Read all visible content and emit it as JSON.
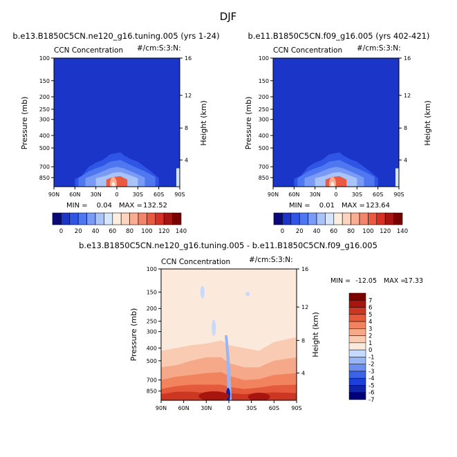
{
  "figure_title": "DJF",
  "colors": {
    "abs_scale": [
      "#0a0a7a",
      "#1a35c8",
      "#2f55e6",
      "#4f77f0",
      "#7a9bf5",
      "#a9c3fb",
      "#d6e6ff",
      "#fdeee0",
      "#fcd3be",
      "#f9ad92",
      "#f5856a",
      "#ea5a43",
      "#d53225",
      "#a8140f",
      "#7a0000"
    ],
    "diff_scale": [
      "#000078",
      "#0e23a8",
      "#1c3fd9",
      "#3a63e8",
      "#6a8ff0",
      "#98b5f6",
      "#c6daff",
      "#fbeadb",
      "#f9cbb3",
      "#f6a989",
      "#f1845f",
      "#e45a3b",
      "#cd3622",
      "#a8150e",
      "#7d0000"
    ]
  },
  "chart_data": [
    {
      "type": "heatmap",
      "title": "b.e13.B1850C5CN.ne120_g16.tuning.005 (yrs 1-24)",
      "left_label": "CCN Concentration",
      "right_label": "#/cm:S:3:N:",
      "ylabel": "Pressure (mb)",
      "ylabel2": "Height (km)",
      "x_ticks": [
        "90N",
        "60N",
        "30N",
        "0",
        "30S",
        "60S",
        "90S"
      ],
      "y_ticks": [
        "100",
        "150",
        "200",
        "250",
        "300",
        "400",
        "500",
        "700",
        "850"
      ],
      "y2_ticks": [
        "16",
        "12",
        "8",
        "4"
      ],
      "stats": {
        "min_label": "MIN =",
        "min": "0.04",
        "max_label": "MAX =",
        "max": "132.52"
      },
      "colorbar_labels": [
        "0",
        "20",
        "40",
        "60",
        "80",
        "100",
        "120",
        "140"
      ],
      "contours": [
        {
          "level": 5,
          "x": [
            "60N",
            "50N",
            "40N",
            "30N",
            "20N",
            "10N",
            "5S",
            "10S",
            "20S",
            "30S",
            "40S",
            "50S",
            "60S"
          ],
          "top_mb": [
            870,
            820,
            700,
            650,
            620,
            560,
            540,
            570,
            610,
            640,
            700,
            770,
            860
          ]
        },
        {
          "level": 4,
          "x": [
            "55N",
            "40N",
            "30N",
            "20N",
            "10N",
            "5S",
            "15S",
            "25S",
            "40S",
            "55S"
          ],
          "top_mb": [
            860,
            760,
            720,
            690,
            640,
            620,
            660,
            700,
            760,
            840
          ]
        },
        {
          "level": 3,
          "x": [
            "45N",
            "30N",
            "20N",
            "10N",
            "0",
            "10S",
            "25S",
            "40S"
          ],
          "top_mb": [
            860,
            800,
            760,
            720,
            700,
            720,
            780,
            850
          ]
        },
        {
          "level": 2,
          "x": [
            "30N",
            "15N",
            "5N",
            "5S",
            "15S",
            "30S"
          ],
          "top_mb": [
            860,
            820,
            780,
            770,
            800,
            860
          ]
        },
        {
          "level": 1,
          "x": [
            "15N",
            "5N",
            "5S",
            "15S"
          ],
          "top_mb": [
            880,
            840,
            830,
            880
          ]
        }
      ]
    },
    {
      "type": "heatmap",
      "title": "b.e11.B1850C5CN.f09_g16.005 (yrs 402-421)",
      "left_label": "CCN Concentration",
      "right_label": "#/cm:S:3:N:",
      "ylabel": "Pressure (mb)",
      "ylabel2": "Height (km)",
      "x_ticks": [
        "90N",
        "60N",
        "30N",
        "0",
        "30S",
        "60S",
        "90S"
      ],
      "y_ticks": [
        "100",
        "150",
        "200",
        "250",
        "300",
        "400",
        "500",
        "700",
        "850"
      ],
      "y2_ticks": [
        "16",
        "12",
        "8",
        "4"
      ],
      "stats": {
        "min_label": "MIN =",
        "min": "0.01",
        "max_label": "MAX =",
        "max": "123.64"
      },
      "colorbar_labels": [
        "0",
        "20",
        "40",
        "60",
        "80",
        "100",
        "120",
        "140"
      ],
      "contours": [
        {
          "level": 5,
          "x": [
            "60N",
            "50N",
            "40N",
            "30N",
            "20N",
            "10N",
            "5S",
            "10S",
            "20S",
            "30S",
            "40S",
            "50S",
            "60S"
          ],
          "top_mb": [
            870,
            820,
            700,
            650,
            620,
            560,
            540,
            570,
            610,
            640,
            700,
            770,
            860
          ]
        },
        {
          "level": 4,
          "x": [
            "55N",
            "40N",
            "30N",
            "20N",
            "10N",
            "5S",
            "15S",
            "25S",
            "40S",
            "55S"
          ],
          "top_mb": [
            860,
            760,
            720,
            690,
            640,
            620,
            660,
            700,
            760,
            840
          ]
        },
        {
          "level": 3,
          "x": [
            "45N",
            "30N",
            "20N",
            "10N",
            "0",
            "10S",
            "25S",
            "40S"
          ],
          "top_mb": [
            860,
            800,
            760,
            720,
            700,
            720,
            780,
            850
          ]
        },
        {
          "level": 2,
          "x": [
            "30N",
            "15N",
            "5N",
            "5S",
            "15S",
            "30S"
          ],
          "top_mb": [
            860,
            820,
            780,
            770,
            800,
            860
          ]
        },
        {
          "level": 1,
          "x": [
            "15N",
            "5N",
            "5S",
            "15S"
          ],
          "top_mb": [
            880,
            840,
            830,
            880
          ]
        }
      ]
    },
    {
      "type": "heatmap",
      "title": "b.e13.B1850C5CN.ne120_g16.tuning.005 - b.e11.B1850C5CN.f09_g16.005",
      "left_label": "CCN Concentration",
      "right_label": "#/cm:S:3:N:",
      "ylabel": "Pressure (mb)",
      "ylabel2": "Height (km)",
      "x_ticks": [
        "90N",
        "60N",
        "30N",
        "0",
        "30S",
        "60S",
        "90S"
      ],
      "y_ticks": [
        "100",
        "150",
        "200",
        "250",
        "300",
        "400",
        "500",
        "700",
        "850"
      ],
      "y2_ticks": [
        "16",
        "12",
        "8",
        "4"
      ],
      "stats": {
        "min_label": "MIN =",
        "min": "-12.05",
        "max_label": "MAX =",
        "max": "17.33"
      },
      "colorbar_labels": [
        "7",
        "6",
        "5",
        "4",
        "3",
        "2",
        "1",
        "0",
        "-1",
        "-2",
        "-3",
        "-4",
        "-5",
        "-6",
        "-7"
      ]
    }
  ]
}
